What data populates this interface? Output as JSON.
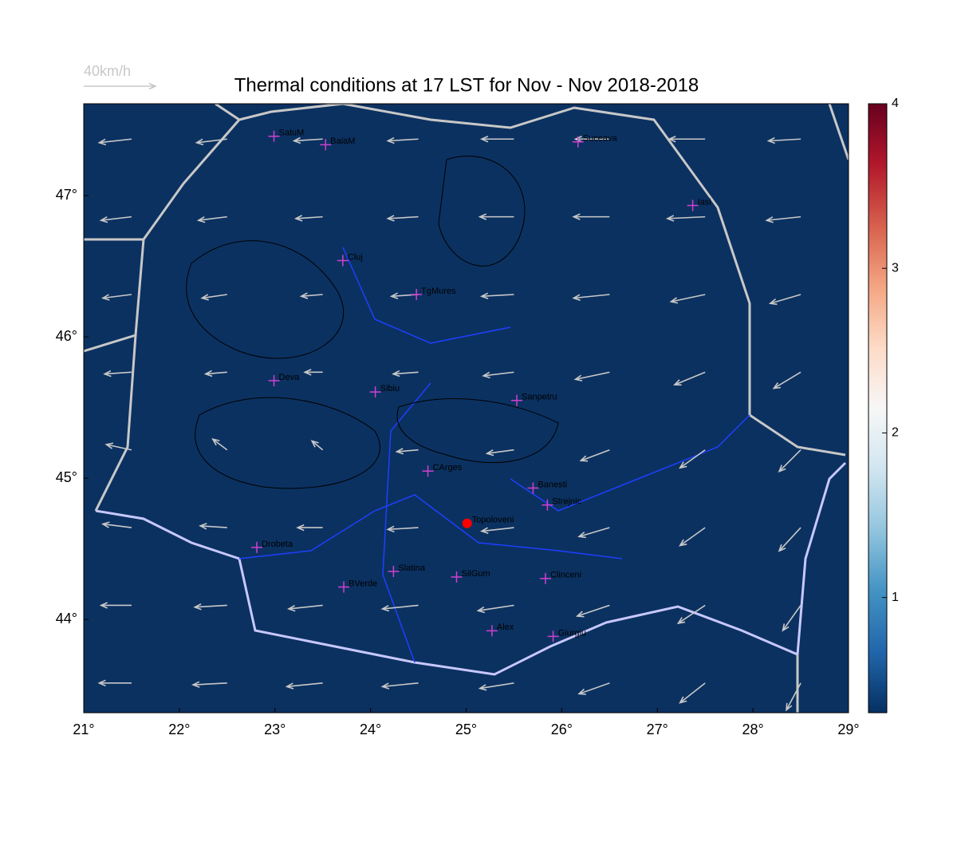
{
  "chart_data": {
    "type": "vector-map",
    "title": "Thermal conditions at 17 LST for Nov - Nov  2018-2018",
    "background": "#0b3160",
    "xlim": [
      21,
      29
    ],
    "ylim": [
      43.34,
      47.65
    ],
    "xticks": [
      {
        "value": 21,
        "label": "21°"
      },
      {
        "value": 22,
        "label": "22°"
      },
      {
        "value": 23,
        "label": "23°"
      },
      {
        "value": 24,
        "label": "24°"
      },
      {
        "value": 25,
        "label": "25°"
      },
      {
        "value": 26,
        "label": "26°"
      },
      {
        "value": 27,
        "label": "27°"
      },
      {
        "value": 28,
        "label": "28°"
      },
      {
        "value": 29,
        "label": "29°"
      }
    ],
    "yticks": [
      {
        "value": 44,
        "label": "44°"
      },
      {
        "value": 45,
        "label": "45°"
      },
      {
        "value": 46,
        "label": "46°"
      },
      {
        "value": 47,
        "label": "47°"
      }
    ],
    "wind_scale": {
      "value": 40,
      "label": "40km/h",
      "color": "#c8c8c8"
    },
    "wind": {
      "color": "#c8c8c8",
      "lon": [
        21.5,
        22.5,
        23.5,
        24.5,
        25.5,
        26.5,
        27.5,
        28.5
      ],
      "lat": [
        47.4,
        46.85,
        46.3,
        45.75,
        45.2,
        44.65,
        44.1,
        43.55
      ],
      "u": [
        [
          -18,
          -17,
          -16,
          -17,
          -18,
          -19,
          -20,
          -18
        ],
        [
          -17,
          -16,
          -15,
          -17,
          -19,
          -20,
          -21,
          -19
        ],
        [
          -16,
          -14,
          -12,
          -15,
          -18,
          -20,
          -19,
          -17
        ],
        [
          -15,
          -12,
          -10,
          -14,
          -17,
          -19,
          -17,
          -15
        ],
        [
          -14,
          -8,
          -6,
          -12,
          -15,
          -16,
          -14,
          -12
        ],
        [
          -16,
          -15,
          -14,
          -17,
          -18,
          -17,
          -14,
          -12
        ],
        [
          -17,
          -18,
          -19,
          -20,
          -20,
          -18,
          -15,
          -10
        ],
        [
          -18,
          -19,
          -20,
          -20,
          -19,
          -17,
          -14,
          -8
        ]
      ],
      "v": [
        [
          -2,
          -2,
          -1,
          -1,
          0,
          0,
          0,
          -1
        ],
        [
          -2,
          -2,
          -1,
          -1,
          0,
          0,
          -1,
          -2
        ],
        [
          -2,
          -2,
          -1,
          -1,
          -1,
          -2,
          -4,
          -5
        ],
        [
          -1,
          -1,
          0,
          -1,
          -2,
          -4,
          -7,
          -9
        ],
        [
          3,
          6,
          5,
          -1,
          -2,
          -6,
          -10,
          -12
        ],
        [
          2,
          1,
          0,
          -1,
          -2,
          -5,
          -10,
          -13
        ],
        [
          0,
          -1,
          -2,
          -2,
          -3,
          -6,
          -10,
          -14
        ],
        [
          0,
          -1,
          -2,
          -2,
          -3,
          -6,
          -11,
          -15
        ]
      ]
    },
    "stations": [
      {
        "label": "SatuM",
        "lon": 22.99,
        "lat": 47.42,
        "marker": "plus"
      },
      {
        "label": "BaiaM",
        "lon": 23.53,
        "lat": 47.36,
        "marker": "plus"
      },
      {
        "label": "Suceava",
        "lon": 26.17,
        "lat": 47.38,
        "marker": "plus"
      },
      {
        "label": "Iasi",
        "lon": 27.37,
        "lat": 46.93,
        "marker": "plus"
      },
      {
        "label": "Cluj",
        "lon": 23.71,
        "lat": 46.54,
        "marker": "plus"
      },
      {
        "label": "TgMures",
        "lon": 24.48,
        "lat": 46.3,
        "marker": "plus"
      },
      {
        "label": "Deva",
        "lon": 22.99,
        "lat": 45.69,
        "marker": "plus"
      },
      {
        "label": "Sibiu",
        "lon": 24.05,
        "lat": 45.61,
        "marker": "plus"
      },
      {
        "label": "Sanpetru",
        "lon": 25.53,
        "lat": 45.55,
        "marker": "plus"
      },
      {
        "label": "CArges",
        "lon": 24.6,
        "lat": 45.05,
        "marker": "plus"
      },
      {
        "label": "Banesti",
        "lon": 25.7,
        "lat": 44.93,
        "marker": "plus"
      },
      {
        "label": "Strejnic",
        "lon": 25.85,
        "lat": 44.81,
        "marker": "plus"
      },
      {
        "label": "Topoloveni",
        "lon": 25.01,
        "lat": 44.68,
        "marker": "dot"
      },
      {
        "label": "Drobeta",
        "lon": 22.81,
        "lat": 44.51,
        "marker": "plus"
      },
      {
        "label": "Slatina",
        "lon": 24.24,
        "lat": 44.34,
        "marker": "plus"
      },
      {
        "label": "SilGum",
        "lon": 24.9,
        "lat": 44.3,
        "marker": "plus"
      },
      {
        "label": "BVerde",
        "lon": 23.72,
        "lat": 44.23,
        "marker": "plus"
      },
      {
        "label": "Clinceni",
        "lon": 25.83,
        "lat": 44.29,
        "marker": "plus"
      },
      {
        "label": "Alex",
        "lon": 25.27,
        "lat": 43.92,
        "marker": "plus"
      },
      {
        "label": "Giurgiu",
        "lon": 25.91,
        "lat": 43.88,
        "marker": "plus"
      }
    ],
    "colorbar": {
      "lim": [
        0.3,
        4.0
      ],
      "ticks": [
        1,
        2,
        3,
        4
      ],
      "colors": [
        "#053061",
        "#2166ac",
        "#4393c3",
        "#92c5de",
        "#d1e5f0",
        "#f7f7f7",
        "#fddbc7",
        "#f4a582",
        "#d6604d",
        "#b2182b",
        "#67001f"
      ]
    }
  }
}
